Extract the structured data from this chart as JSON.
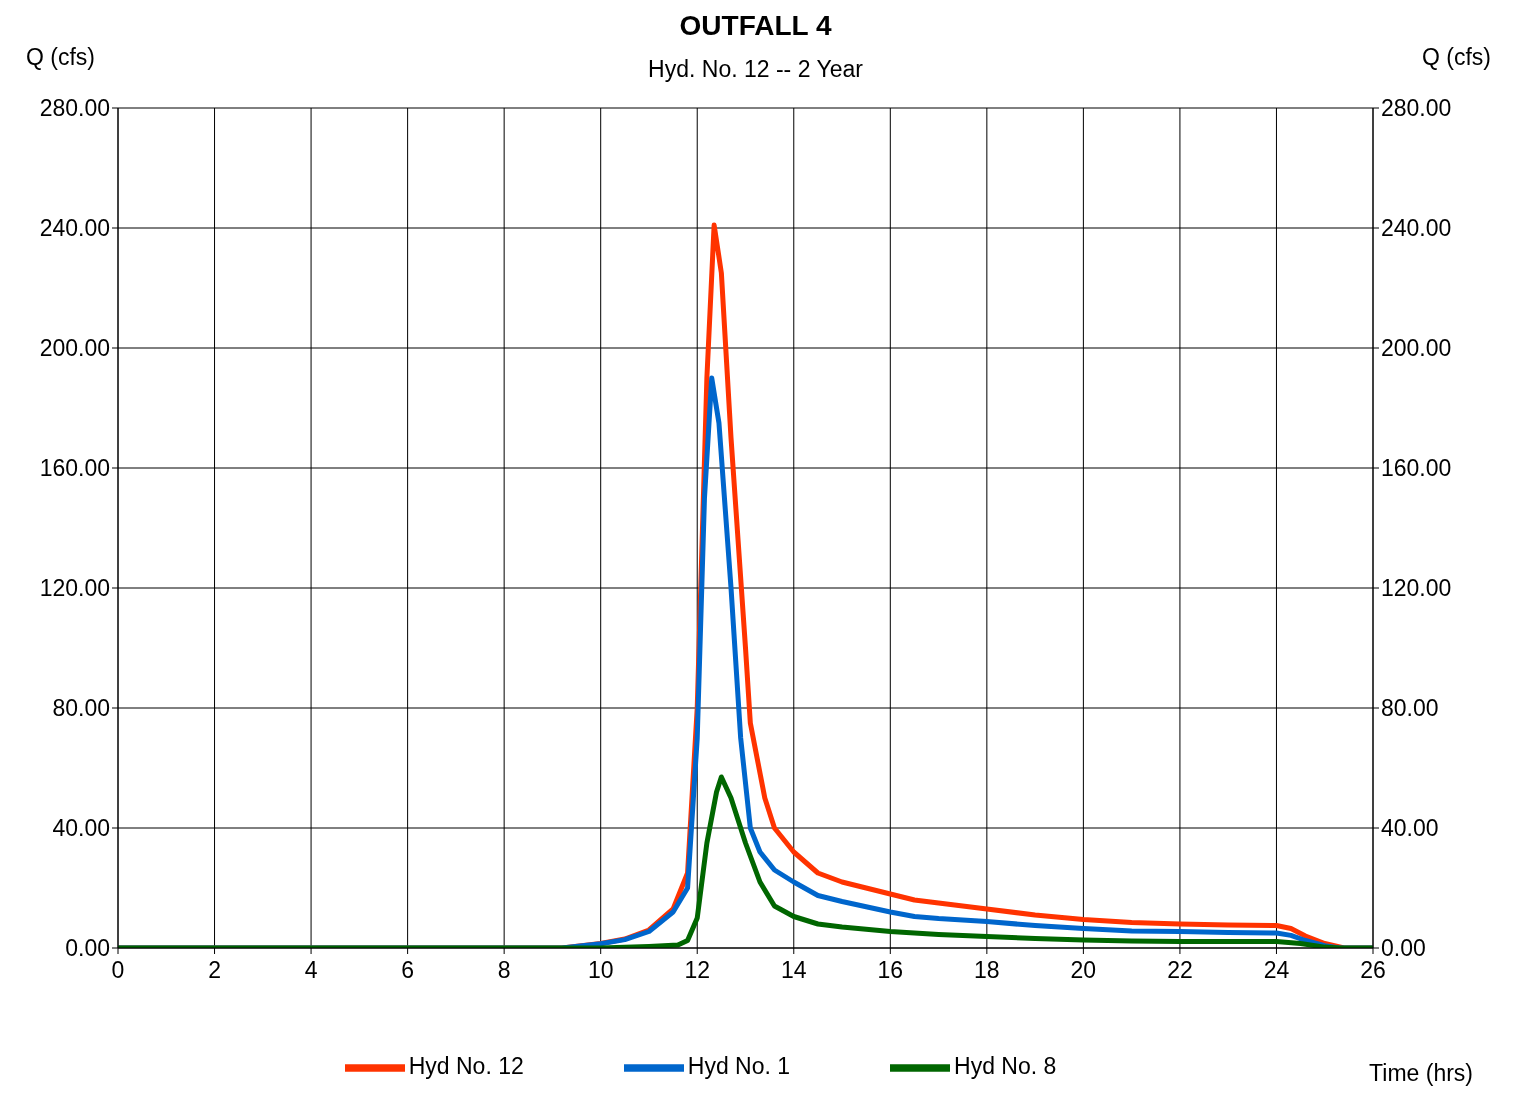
{
  "chart_data": {
    "type": "line",
    "title": "OUTFALL 4",
    "subtitle": "Hyd. No. 12 -- 2 Year",
    "xlabel": "Time (hrs)",
    "ylabel": "Q (cfs)",
    "y2label": "Q (cfs)",
    "xlim": [
      0,
      26
    ],
    "xticks": [
      0,
      2,
      4,
      6,
      8,
      10,
      12,
      14,
      16,
      18,
      20,
      22,
      24,
      26
    ],
    "ylim": [
      0,
      280
    ],
    "yticks": [
      {
        "value": 0,
        "label": "0.00"
      },
      {
        "value": 40,
        "label": "40.00"
      },
      {
        "value": 80,
        "label": "80.00"
      },
      {
        "value": 120,
        "label": "120.00"
      },
      {
        "value": 160,
        "label": "160.00"
      },
      {
        "value": 200,
        "label": "200.00"
      },
      {
        "value": 240,
        "label": "240.00"
      },
      {
        "value": 280,
        "label": "280.00"
      }
    ],
    "y2lim": [
      0,
      280
    ],
    "y2ticks": [
      {
        "value": 0,
        "label": "0.00"
      },
      {
        "value": 40,
        "label": "40.00"
      },
      {
        "value": 80,
        "label": "80.00"
      },
      {
        "value": 120,
        "label": "120.00"
      },
      {
        "value": 160,
        "label": "160.00"
      },
      {
        "value": 200,
        "label": "200.00"
      },
      {
        "value": 240,
        "label": "240.00"
      },
      {
        "value": 280,
        "label": "280.00"
      }
    ],
    "grid": true,
    "legend": "bottom",
    "marker": "none",
    "line_style": "solid",
    "series": [
      {
        "name": "Hyd No. 12",
        "color": "#ff3300",
        "x": [
          0,
          9.2,
          10,
          10.5,
          11,
          11.5,
          11.8,
          12,
          12.2,
          12.35,
          12.5,
          12.7,
          13,
          13.1,
          13.4,
          13.6,
          14,
          14.5,
          15,
          15.5,
          16,
          16.5,
          17,
          18,
          19,
          20,
          21,
          22,
          23,
          24,
          24.3,
          24.6,
          25,
          25.4,
          26
        ],
        "values": [
          0,
          0,
          1.5,
          3,
          6,
          13,
          25,
          80,
          190,
          241,
          225,
          170,
          100,
          75,
          50,
          40,
          32,
          25,
          22,
          20,
          18,
          16,
          15,
          13,
          11,
          9.5,
          8.5,
          8,
          7.7,
          7.5,
          6.5,
          4,
          1.5,
          0,
          0
        ]
      },
      {
        "name": "Hyd No. 1",
        "color": "#0066cc",
        "x": [
          0,
          9.2,
          10,
          10.5,
          11,
          11.5,
          11.8,
          12,
          12.15,
          12.3,
          12.45,
          12.7,
          12.9,
          13.1,
          13.3,
          13.6,
          14,
          14.5,
          15,
          16,
          16.5,
          17,
          18,
          19,
          20,
          21,
          22,
          23,
          24,
          24.3,
          24.6,
          25,
          25.3,
          26
        ],
        "values": [
          0,
          0,
          1.4,
          2.8,
          5.5,
          12,
          20,
          70,
          150,
          190,
          175,
          120,
          70,
          40,
          32,
          26,
          22,
          17.5,
          15.5,
          12,
          10.5,
          9.8,
          8.8,
          7.5,
          6.5,
          5.7,
          5.5,
          5.2,
          5,
          4.2,
          2.5,
          0.8,
          0,
          0
        ]
      },
      {
        "name": "Hyd No. 8",
        "color": "#006600",
        "x": [
          0,
          10,
          11,
          11.6,
          11.8,
          12,
          12.2,
          12.4,
          12.5,
          12.7,
          13,
          13.3,
          13.6,
          14,
          14.5,
          15,
          16,
          17,
          18,
          19,
          20,
          21,
          22,
          23,
          24,
          24.5,
          25,
          25.3,
          26
        ],
        "values": [
          0,
          0,
          0.5,
          1,
          2.5,
          10,
          35,
          52,
          57,
          50,
          35,
          22,
          14,
          10.5,
          8,
          7,
          5.5,
          4.5,
          3.8,
          3.2,
          2.7,
          2.3,
          2.2,
          2.2,
          2.2,
          1.5,
          0.3,
          0,
          0
        ]
      }
    ]
  }
}
